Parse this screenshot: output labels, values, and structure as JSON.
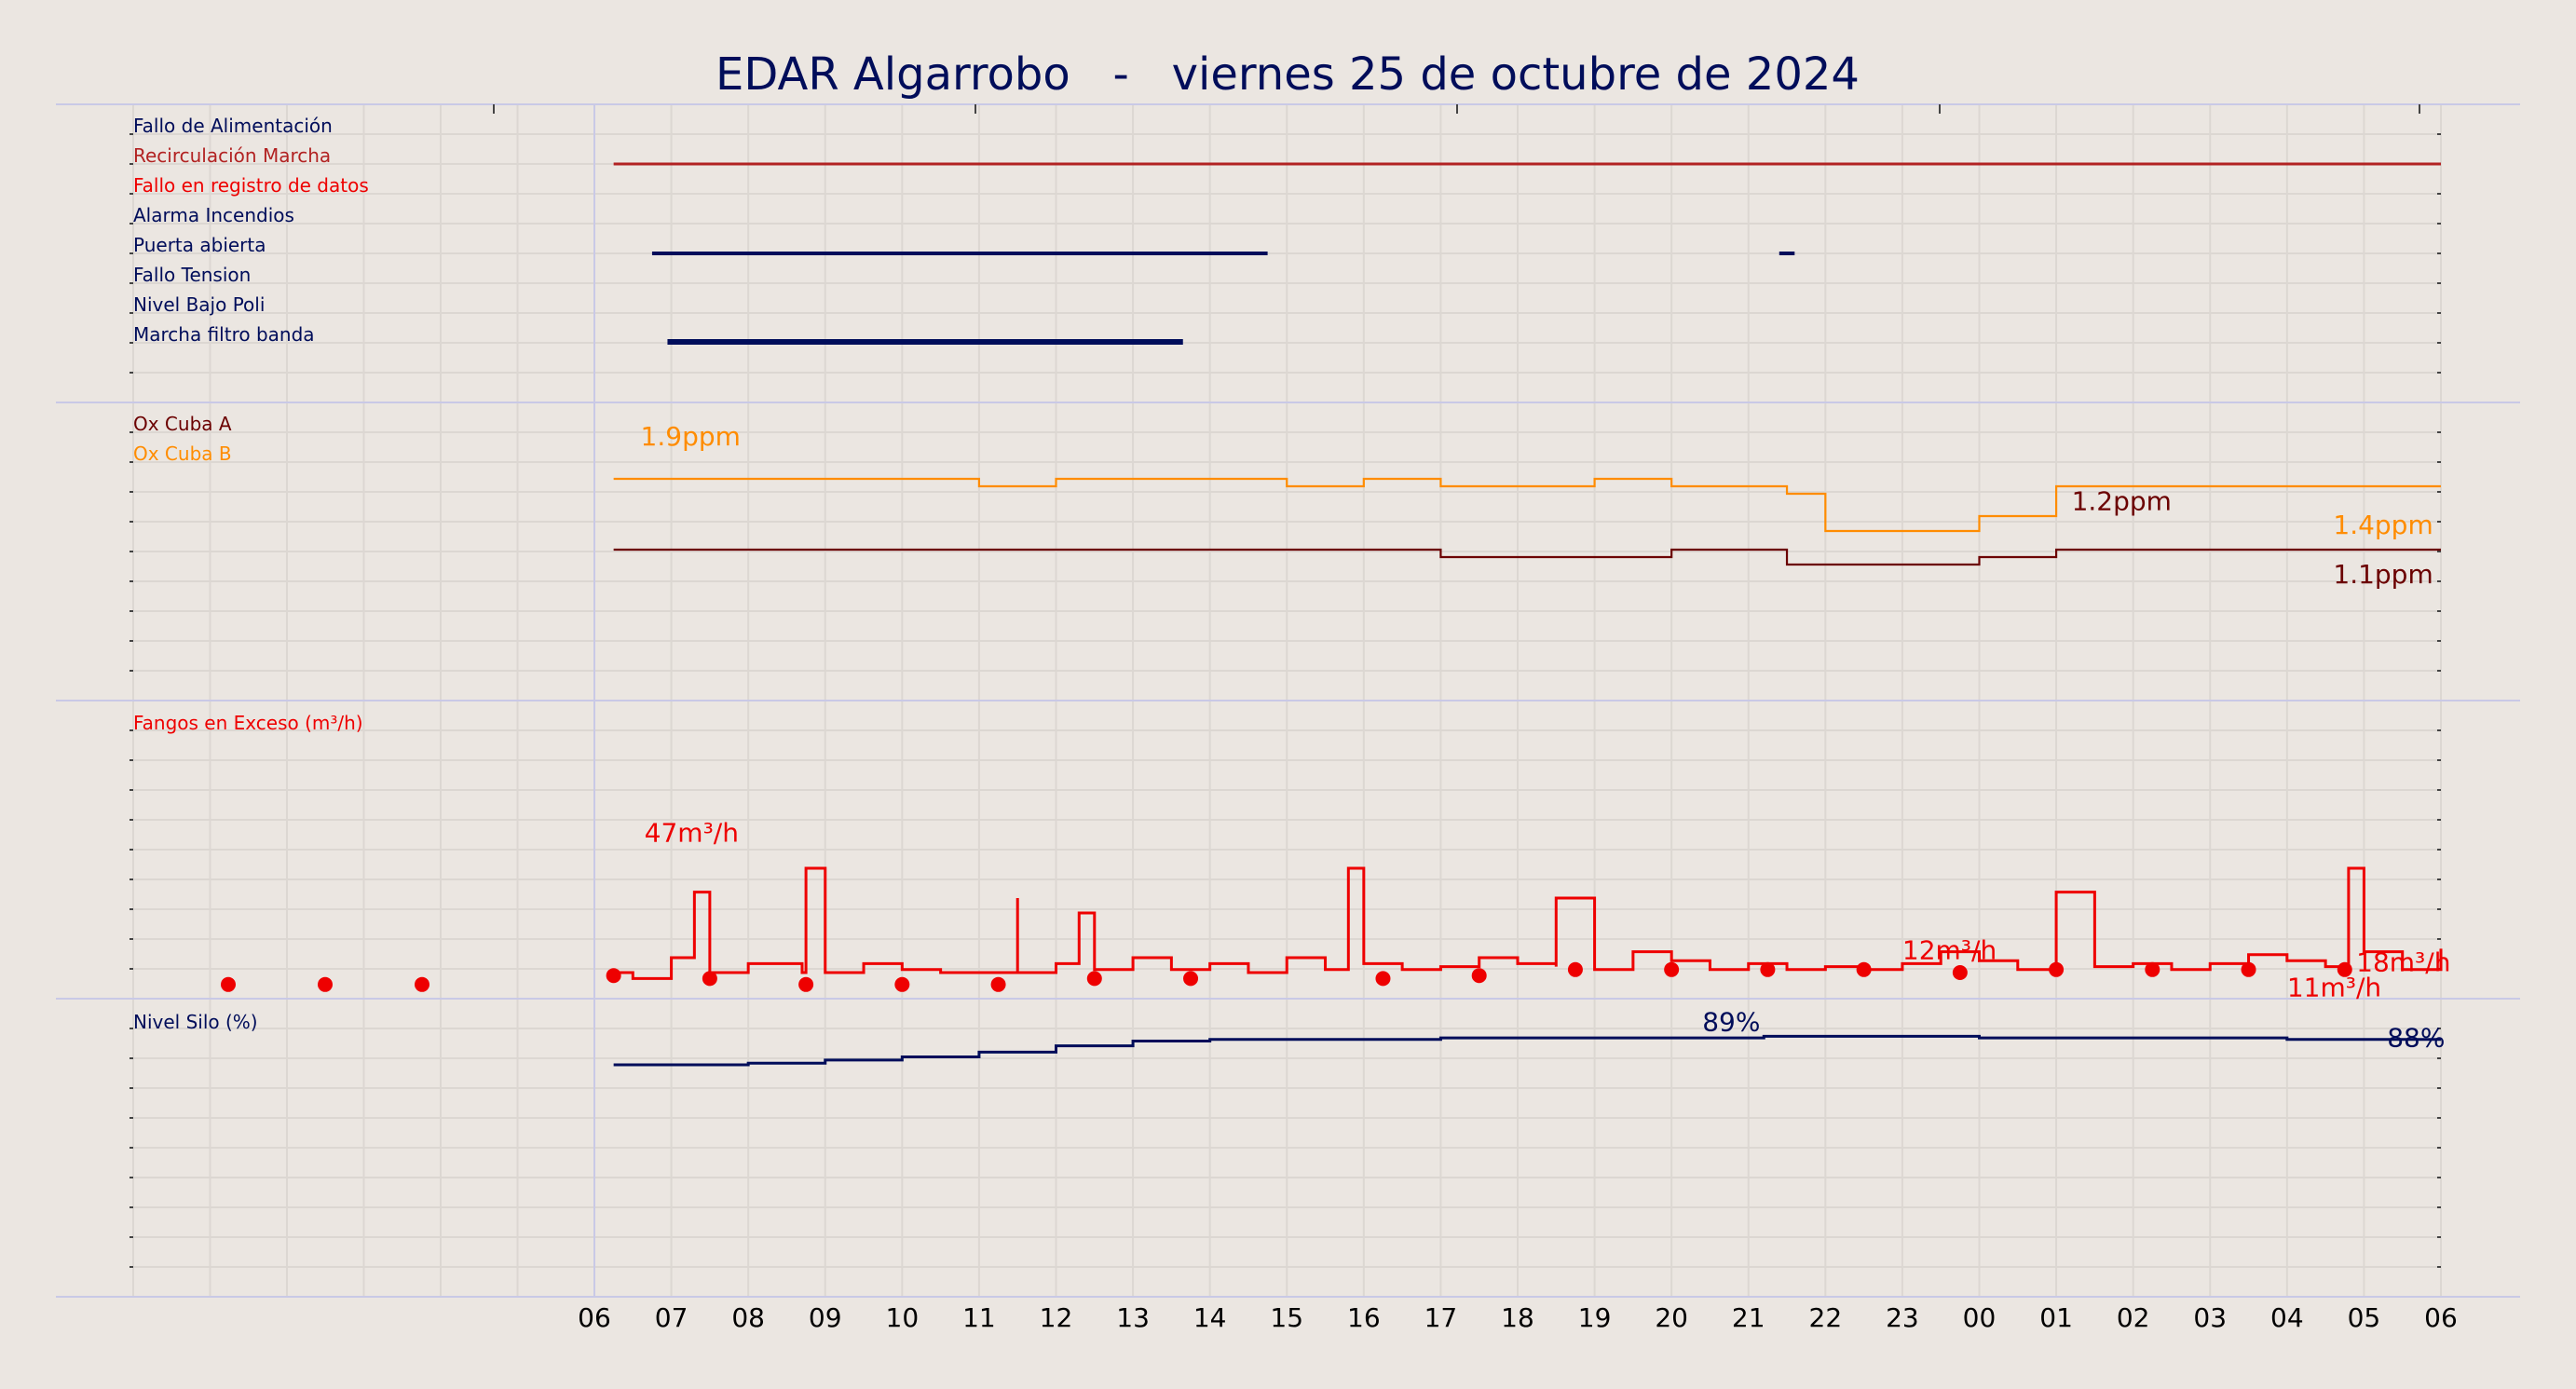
{
  "title": "EDAR Algarrobo   -   viernes 25 de octubre de 2024",
  "colors": {
    "background": "#ebe6e1",
    "grid": "#dcd7d2",
    "separator": "#c9c9e6",
    "navy": "#000d5a",
    "darkred": "#6b0000",
    "orange": "#ff8c00",
    "red": "#ee0000",
    "brownred": "#b22222"
  },
  "x_axis": {
    "tick_labels": [
      "06",
      "07",
      "08",
      "09",
      "10",
      "11",
      "12",
      "13",
      "14",
      "15",
      "16",
      "17",
      "18",
      "19",
      "20",
      "21",
      "22",
      "23",
      "00",
      "01",
      "02",
      "03",
      "04",
      "05",
      "06"
    ]
  },
  "chart_data": [
    {
      "type": "timeline",
      "panel": "status",
      "x_range_hours": [
        6,
        30
      ],
      "labels": [
        {
          "text": "Fallo de Alimentación",
          "color": "#000d5a"
        },
        {
          "text": "Recirculación Marcha",
          "color": "#b22222"
        },
        {
          "text": "Fallo en registro de datos",
          "color": "#ee0000"
        },
        {
          "text": "Alarma Incendios",
          "color": "#000d5a"
        },
        {
          "text": "Puerta abierta",
          "color": "#000d5a"
        },
        {
          "text": "Fallo Tension",
          "color": "#000d5a"
        },
        {
          "text": "Nivel Bajo Poli",
          "color": "#000d5a"
        },
        {
          "text": "Marcha filtro banda",
          "color": "#000d5a"
        }
      ],
      "segments": [
        {
          "row": 1,
          "start": 6.25,
          "end": 30.0,
          "color": "#b22222",
          "weight": "thin"
        },
        {
          "row": 4,
          "start": 6.75,
          "end": 14.75,
          "color": "#000d5a",
          "weight": "medium"
        },
        {
          "row": 4,
          "start": 21.4,
          "end": 21.6,
          "color": "#000d5a",
          "weight": "medium"
        },
        {
          "row": 7,
          "start": 6.95,
          "end": 13.65,
          "color": "#000d5a",
          "weight": "thick"
        }
      ]
    },
    {
      "type": "line",
      "panel": "oxygen",
      "units": "ppm",
      "series": [
        {
          "name": "Ox Cuba A",
          "color": "#6b0000",
          "x": [
            6.25,
            7,
            8,
            9,
            10,
            11,
            12,
            13,
            14,
            15,
            16,
            17,
            18,
            19,
            20,
            21,
            21.5,
            22,
            23,
            24,
            25,
            26,
            27,
            28,
            29,
            30
          ],
          "y": [
            1.9,
            1.9,
            1.9,
            1.9,
            1.9,
            1.9,
            1.9,
            1.9,
            1.9,
            1.9,
            1.9,
            1.8,
            1.8,
            1.8,
            1.9,
            1.9,
            1.7,
            1.7,
            1.7,
            1.8,
            1.9,
            1.9,
            1.9,
            1.9,
            1.9,
            1.9
          ]
        },
        {
          "name": "Ox Cuba B",
          "color": "#ff8c00",
          "x": [
            6.25,
            7,
            8,
            9,
            10,
            11,
            12,
            13,
            14,
            15,
            16,
            17,
            18,
            19,
            20,
            21,
            21.5,
            22,
            23,
            24,
            25,
            26,
            27,
            28,
            29,
            30
          ],
          "y": [
            2.6,
            2.6,
            2.6,
            2.6,
            2.6,
            2.5,
            2.6,
            2.6,
            2.6,
            2.5,
            2.6,
            2.5,
            2.5,
            2.6,
            2.5,
            2.5,
            2.4,
            1.9,
            1.9,
            2.1,
            2.5,
            2.5,
            2.5,
            2.5,
            2.5,
            2.5
          ]
        }
      ],
      "annotations": [
        {
          "text": "1.9ppm",
          "color": "#ff8c00",
          "x": 6.6,
          "y": 3.35
        },
        {
          "text": "1.2ppm",
          "color": "#6b0000",
          "x": 25.2,
          "y": 2.48
        },
        {
          "text": "1.4ppm",
          "color": "#ff8c00",
          "x": 28.6,
          "y": 2.16
        },
        {
          "text": "1.1ppm",
          "color": "#6b0000",
          "x": 28.6,
          "y": 1.5
        }
      ]
    },
    {
      "type": "line",
      "panel": "sludge",
      "units": "m³/h",
      "title_label": "Fangos en Exceso (m³/h)",
      "series": [
        {
          "name": "Fangos en Exceso",
          "color": "#ee0000",
          "x": [
            6.25,
            6.5,
            7,
            7.3,
            7.5,
            8,
            8.7,
            8.75,
            9,
            9.5,
            10,
            10.5,
            11,
            11.5,
            11.5,
            12,
            12.3,
            12.5,
            13,
            13.5,
            14,
            14.5,
            15,
            15.5,
            15.8,
            16,
            16.5,
            17,
            17.5,
            18,
            18.5,
            18.5,
            19,
            19.5,
            20,
            20.5,
            21,
            21.5,
            22,
            22.5,
            23,
            23.5,
            24,
            24.5,
            25,
            25,
            25.5,
            26,
            26.5,
            27,
            27.5,
            28,
            28.5,
            28.8,
            29,
            29.5,
            30
          ],
          "y": [
            5,
            3,
            10,
            32,
            5,
            8,
            5,
            40,
            5,
            8,
            6,
            5,
            5,
            30,
            5,
            8,
            25,
            6,
            10,
            6,
            8,
            5,
            10,
            6,
            40,
            8,
            6,
            7,
            10,
            8,
            7,
            30,
            6,
            12,
            9,
            6,
            8,
            6,
            7,
            6,
            8,
            12,
            9,
            6,
            8,
            32,
            7,
            8,
            6,
            8,
            11,
            9,
            7,
            40,
            12,
            6,
            13
          ]
        }
      ],
      "markers_x": [
        -8,
        -6,
        -4,
        6.25,
        7.5,
        8.75,
        10,
        11.25,
        12.5,
        13.75,
        16.25,
        17.5,
        18.75,
        20,
        21.25,
        22.5,
        23.75,
        25,
        26.25,
        27.5,
        28.75
      ],
      "markers_y": [
        1,
        1,
        1,
        4,
        3,
        1,
        1,
        1,
        3,
        3,
        3,
        4,
        6,
        6,
        6,
        6,
        5,
        6,
        6,
        6,
        6
      ],
      "annotations": [
        {
          "text": "47m³/h",
          "color": "#ee0000",
          "x": 6.65,
          "y": 47
        },
        {
          "text": "12m³/h",
          "color": "#ee0000",
          "x": 23.0,
          "y": 12
        },
        {
          "text": "18m³/h",
          "color": "#ee0000",
          "x": 28.9,
          "y": 8
        },
        {
          "text": "11m³/h",
          "color": "#ee0000",
          "x": 28.0,
          "y": -0.5
        }
      ],
      "ylim": [
        0,
        50
      ]
    },
    {
      "type": "line",
      "panel": "silo",
      "units": "%",
      "title_label": "Nivel Silo (%)",
      "series": [
        {
          "name": "Nivel Silo",
          "color": "#000d5a",
          "x": [
            6.25,
            7,
            8,
            9,
            10,
            11,
            12,
            13,
            14,
            15,
            16,
            17,
            18,
            19,
            20,
            21,
            21.2,
            21.5,
            22,
            23,
            24,
            25,
            26,
            27,
            28,
            29,
            30
          ],
          "y": [
            80,
            80,
            80.5,
            81.5,
            82.5,
            84,
            86,
            87.5,
            88,
            88,
            88,
            88.5,
            88.5,
            88.5,
            88.5,
            88.5,
            89,
            89,
            89,
            89,
            88.5,
            88.5,
            88.5,
            88.5,
            88,
            88,
            88
          ]
        }
      ],
      "annotations": [
        {
          "text": "89%",
          "color": "#000d5a",
          "x": 20.4,
          "y": 89
        },
        {
          "text": "88%",
          "color": "#000d5a",
          "x": 29.3,
          "y": 84
        }
      ],
      "ylim": [
        40,
        95
      ]
    }
  ]
}
